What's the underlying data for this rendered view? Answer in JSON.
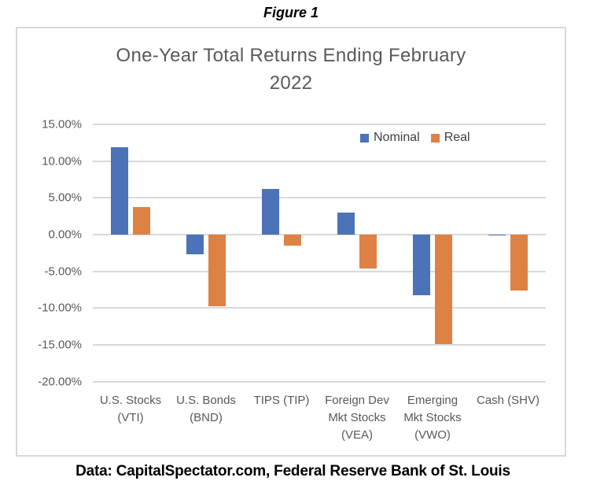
{
  "figure_label": "Figure 1",
  "footer": "Data: CapitalSpectator.com, Federal Reserve Bank of St. Louis",
  "colors": {
    "nominal_blue": "#4C72B8",
    "real_orange": "#DD8244",
    "gridline_gray": "#d9d9d9",
    "text_gray": "#595959"
  },
  "chart_data": {
    "type": "bar",
    "title": "One-Year Total Returns Ending February 2022",
    "categories": [
      "U.S. Stocks (VTI)",
      "U.S. Bonds (BND)",
      "TIPS (TIP)",
      "Foreign Dev Mkt Stocks (VEA)",
      "Emerging Mkt Stocks (VWO)",
      "Cash (SHV)"
    ],
    "category_label_lines": [
      [
        "U.S. Stocks",
        "(VTI)"
      ],
      [
        "U.S. Bonds",
        "(BND)"
      ],
      [
        "TIPS (TIP)"
      ],
      [
        "Foreign Dev",
        "Mkt Stocks",
        "(VEA)"
      ],
      [
        "Emerging",
        "Mkt Stocks",
        "(VWO)"
      ],
      [
        "Cash (SHV)"
      ]
    ],
    "series": [
      {
        "name": "Nominal",
        "color": "#4C72B8",
        "values": [
          11.9,
          -2.7,
          6.2,
          3.0,
          -8.3,
          -0.1
        ]
      },
      {
        "name": "Real",
        "color": "#DD8244",
        "values": [
          3.7,
          -9.7,
          -1.5,
          -4.6,
          -14.9,
          -7.6
        ]
      }
    ],
    "xlabel": "",
    "ylabel": "",
    "ylim": [
      -20,
      15
    ],
    "ytick_step": 5,
    "ytick_labels": [
      "15.00%",
      "10.00%",
      "5.00%",
      "0.00%",
      "-5.00%",
      "-10.00%",
      "-15.00%",
      "-20.00%"
    ],
    "grid": true,
    "legend_position": "top-right-inside"
  }
}
